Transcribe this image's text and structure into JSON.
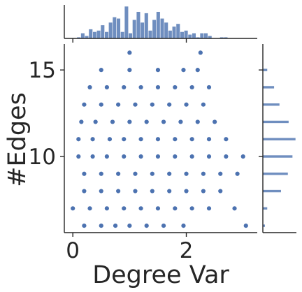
{
  "chart_data": {
    "type": "scatter",
    "xlabel": "Degree Var",
    "ylabel": "#Edges",
    "x_ticks": [
      0,
      2
    ],
    "y_ticks": [
      10,
      15
    ],
    "x_tick_labels": [
      "0",
      "2"
    ],
    "y_tick_labels": [
      "10",
      "15"
    ],
    "xlim": [
      -0.15,
      3.25
    ],
    "ylim": [
      5.6,
      16.5
    ],
    "grid": false,
    "point_color": "#4c72b0",
    "hist_color": "#4c72b0",
    "series": [
      {
        "points": [
          [
            1.0,
            16
          ],
          [
            2.25,
            16
          ],
          [
            0.5,
            15
          ],
          [
            1.0,
            15
          ],
          [
            1.5,
            15
          ],
          [
            1.95,
            15
          ],
          [
            2.2,
            15
          ],
          [
            0.3,
            14
          ],
          [
            0.6,
            14
          ],
          [
            0.9,
            14
          ],
          [
            1.2,
            14
          ],
          [
            1.5,
            14
          ],
          [
            1.8,
            14
          ],
          [
            2.1,
            14
          ],
          [
            2.4,
            14
          ],
          [
            0.2,
            13
          ],
          [
            0.5,
            13
          ],
          [
            0.8,
            13
          ],
          [
            1.1,
            13
          ],
          [
            1.4,
            13
          ],
          [
            1.7,
            13
          ],
          [
            2.0,
            13
          ],
          [
            2.3,
            13
          ],
          [
            0.15,
            12
          ],
          [
            0.4,
            12
          ],
          [
            0.7,
            12
          ],
          [
            1.0,
            12
          ],
          [
            1.3,
            12
          ],
          [
            1.6,
            12
          ],
          [
            1.9,
            12
          ],
          [
            2.2,
            12
          ],
          [
            2.5,
            12
          ],
          [
            0.1,
            11
          ],
          [
            0.35,
            11
          ],
          [
            0.65,
            11
          ],
          [
            0.9,
            11
          ],
          [
            1.2,
            11
          ],
          [
            1.5,
            11
          ],
          [
            1.8,
            11
          ],
          [
            2.1,
            11
          ],
          [
            2.4,
            11
          ],
          [
            2.7,
            11
          ],
          [
            0.1,
            10
          ],
          [
            0.35,
            10
          ],
          [
            0.6,
            10
          ],
          [
            0.9,
            10
          ],
          [
            1.2,
            10
          ],
          [
            1.5,
            10
          ],
          [
            1.8,
            10
          ],
          [
            2.1,
            10
          ],
          [
            2.4,
            10
          ],
          [
            2.7,
            10
          ],
          [
            3.0,
            10
          ],
          [
            0.2,
            9
          ],
          [
            0.5,
            9
          ],
          [
            0.8,
            9
          ],
          [
            1.1,
            9
          ],
          [
            1.4,
            9
          ],
          [
            1.7,
            9
          ],
          [
            2.0,
            9
          ],
          [
            2.3,
            9
          ],
          [
            2.6,
            9
          ],
          [
            2.9,
            9
          ],
          [
            0.2,
            8
          ],
          [
            0.5,
            8
          ],
          [
            0.8,
            8
          ],
          [
            1.1,
            8
          ],
          [
            1.4,
            8
          ],
          [
            1.7,
            8
          ],
          [
            2.0,
            8
          ],
          [
            2.3,
            8
          ],
          [
            2.6,
            8
          ],
          [
            0.0,
            7
          ],
          [
            0.3,
            7
          ],
          [
            0.6,
            7
          ],
          [
            0.9,
            7
          ],
          [
            1.2,
            7
          ],
          [
            1.5,
            7
          ],
          [
            1.8,
            7
          ],
          [
            2.1,
            7
          ],
          [
            2.4,
            7
          ],
          [
            2.85,
            7
          ],
          [
            0.2,
            6
          ],
          [
            0.5,
            6
          ],
          [
            0.75,
            6
          ],
          [
            1.0,
            6
          ],
          [
            1.3,
            6
          ],
          [
            1.6,
            6
          ],
          [
            1.95,
            6
          ],
          [
            3.05,
            6
          ]
        ]
      }
    ],
    "marginal_x": {
      "type": "histogram",
      "bins": [
        [
          0.0,
          0.07,
          0
        ],
        [
          0.07,
          0.14,
          1
        ],
        [
          0.14,
          0.21,
          4
        ],
        [
          0.21,
          0.28,
          2
        ],
        [
          0.28,
          0.35,
          7
        ],
        [
          0.35,
          0.42,
          5
        ],
        [
          0.42,
          0.49,
          6
        ],
        [
          0.49,
          0.56,
          10
        ],
        [
          0.56,
          0.63,
          5
        ],
        [
          0.63,
          0.7,
          12
        ],
        [
          0.7,
          0.77,
          16
        ],
        [
          0.77,
          0.84,
          15
        ],
        [
          0.84,
          0.91,
          5
        ],
        [
          0.91,
          0.98,
          24
        ],
        [
          0.98,
          1.05,
          4
        ],
        [
          1.05,
          1.12,
          14
        ],
        [
          1.12,
          1.19,
          20
        ],
        [
          1.19,
          1.26,
          12
        ],
        [
          1.26,
          1.33,
          19
        ],
        [
          1.33,
          1.4,
          6
        ],
        [
          1.4,
          1.47,
          14
        ],
        [
          1.47,
          1.54,
          20
        ],
        [
          1.54,
          1.61,
          15
        ],
        [
          1.61,
          1.68,
          12
        ],
        [
          1.68,
          1.75,
          6
        ],
        [
          1.75,
          1.82,
          9
        ],
        [
          1.82,
          1.89,
          11
        ],
        [
          1.89,
          1.96,
          5
        ],
        [
          1.96,
          2.03,
          6
        ],
        [
          2.03,
          2.1,
          3
        ],
        [
          2.1,
          2.17,
          4
        ],
        [
          2.17,
          2.24,
          1
        ],
        [
          2.24,
          2.31,
          4
        ],
        [
          2.31,
          2.38,
          4
        ],
        [
          2.38,
          2.45,
          2
        ],
        [
          2.45,
          2.52,
          0
        ],
        [
          2.52,
          2.59,
          0
        ],
        [
          2.59,
          2.66,
          1
        ],
        [
          2.66,
          2.73,
          1
        ],
        [
          2.73,
          2.8,
          0
        ]
      ]
    },
    "marginal_y": {
      "type": "histogram",
      "bins": [
        [
          5.5,
          6.5,
          3
        ],
        [
          6.5,
          7.5,
          6
        ],
        [
          7.5,
          8.5,
          24
        ],
        [
          8.5,
          9.5,
          33
        ],
        [
          9.5,
          10.5,
          39
        ],
        [
          10.5,
          11.5,
          43
        ],
        [
          11.5,
          12.5,
          34
        ],
        [
          12.5,
          13.5,
          22
        ],
        [
          13.5,
          14.5,
          15
        ],
        [
          14.5,
          15.5,
          6
        ],
        [
          15.5,
          16.5,
          0
        ]
      ]
    }
  }
}
